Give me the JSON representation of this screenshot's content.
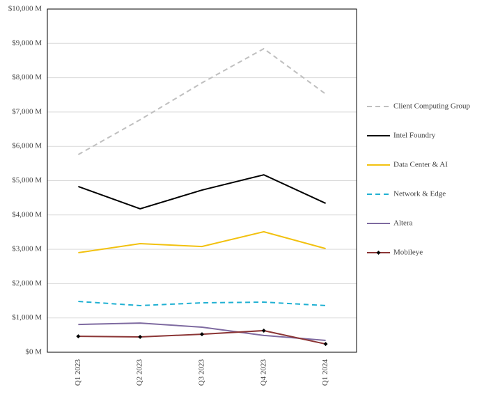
{
  "chart_data": {
    "type": "line",
    "categories": [
      "Q1 2023",
      "Q2 2023",
      "Q3 2023",
      "Q4 2023",
      "Q1 2024"
    ],
    "ylim": [
      0,
      10000
    ],
    "yticks": [
      {
        "value": 0,
        "label": "$0 M"
      },
      {
        "value": 1000,
        "label": "$1,000 M"
      },
      {
        "value": 2000,
        "label": "$2,000 M"
      },
      {
        "value": 3000,
        "label": "$3,000 M"
      },
      {
        "value": 4000,
        "label": "$4,000 M"
      },
      {
        "value": 5000,
        "label": "$5,000 M"
      },
      {
        "value": 6000,
        "label": "$6,000 M"
      },
      {
        "value": 7000,
        "label": "$7,000 M"
      },
      {
        "value": 8000,
        "label": "$8,000 M"
      },
      {
        "value": 9000,
        "label": "$9,000 M"
      },
      {
        "value": 10000,
        "label": "$10,000 M"
      }
    ],
    "grid": true,
    "legend": "right",
    "series": [
      {
        "name": "Client Computing Group",
        "color": "#bfbfbf",
        "dash": true,
        "values": [
          5760,
          6775,
          7850,
          8845,
          7525
        ]
      },
      {
        "name": "Intel Foundry",
        "color": "#000000",
        "values": [
          4830,
          4180,
          4725,
          5170,
          4340
        ]
      },
      {
        "name": "Data Center & AI",
        "color": "#f2c10f",
        "values": [
          2900,
          3165,
          3080,
          3510,
          3020
        ]
      },
      {
        "name": "Network & Edge",
        "color": "#1fb0d2",
        "dash": true,
        "values": [
          1480,
          1360,
          1440,
          1460,
          1360
        ]
      },
      {
        "name": "Altera",
        "color": "#7e6aa0",
        "values": [
          810,
          850,
          730,
          490,
          345
        ]
      },
      {
        "name": "Mobileye",
        "color": "#8b3535",
        "marker": "diamond",
        "values": [
          465,
          445,
          525,
          630,
          240
        ]
      }
    ]
  }
}
